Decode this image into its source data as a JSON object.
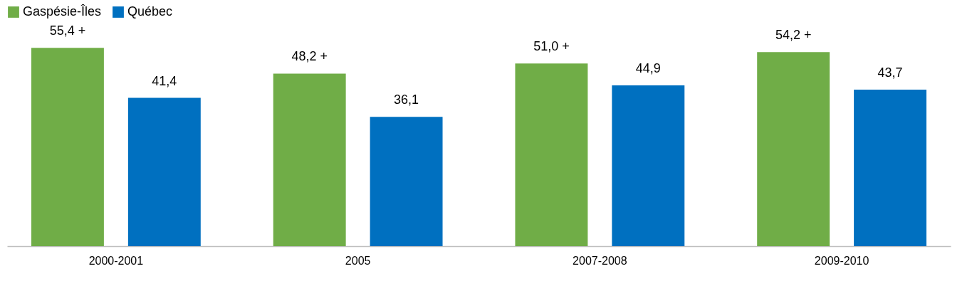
{
  "chart_data": {
    "type": "bar",
    "categories": [
      "2000-2001",
      "2005",
      "2007-2008",
      "2009-2010"
    ],
    "series": [
      {
        "name": "Gaspésie-Îles",
        "color": "#70ad47",
        "values": [
          55.4,
          48.2,
          51.0,
          54.2
        ],
        "value_labels": [
          "55,4 +",
          "48,2 +",
          "51,0 +",
          "54,2 +"
        ]
      },
      {
        "name": "Québec",
        "color": "#0070c0",
        "values": [
          41.4,
          36.1,
          44.9,
          43.7
        ],
        "value_labels": [
          "41,4",
          "36,1",
          "44,9",
          "43,7"
        ]
      }
    ],
    "legend": "top"
  }
}
